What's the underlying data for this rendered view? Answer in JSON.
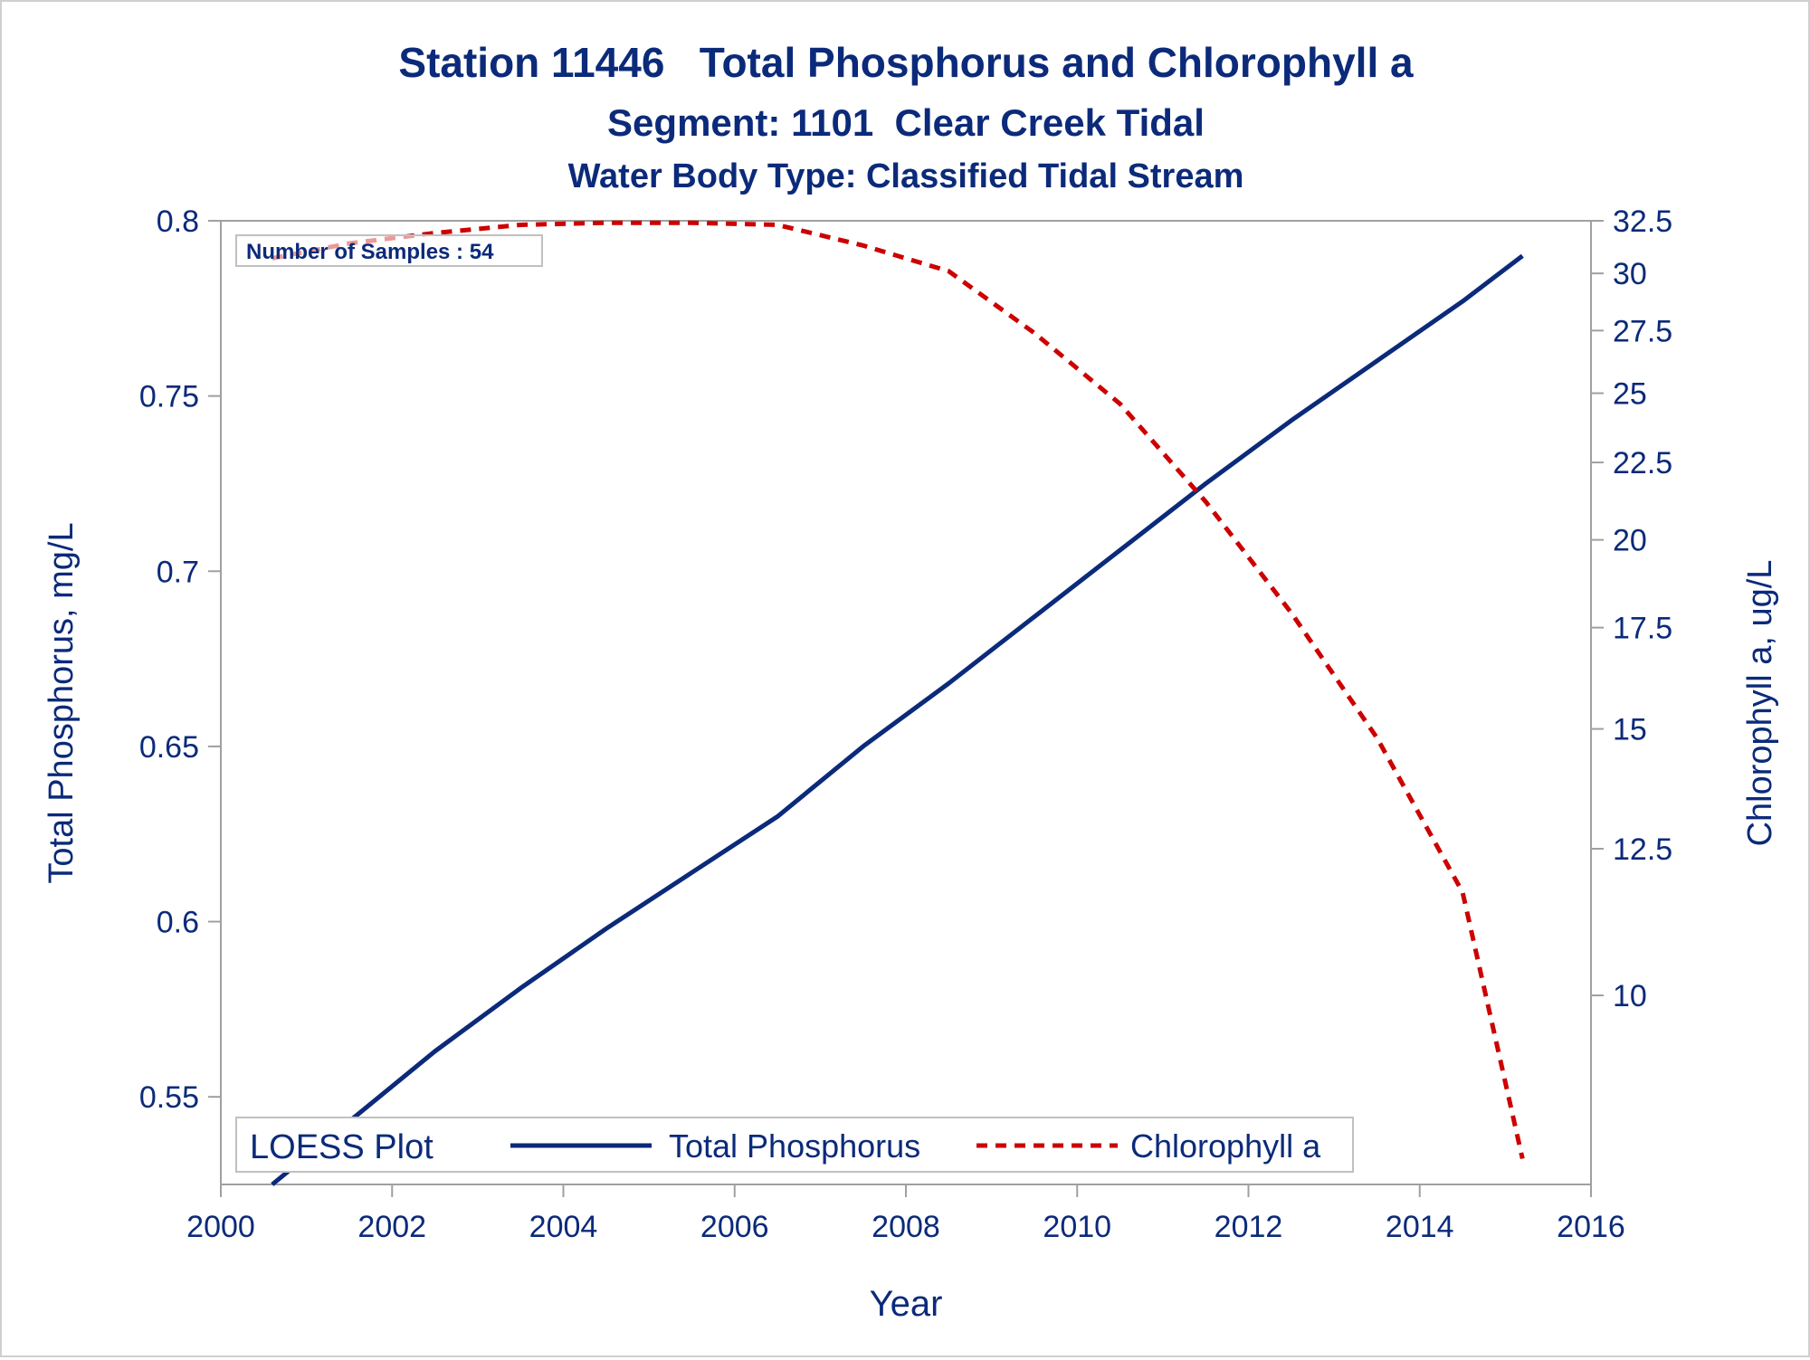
{
  "chart_data": {
    "type": "line",
    "title": "Station 11446   Total Phosphorus and Chlorophyll a",
    "subtitle": "Segment: 1101  Clear Creek Tidal",
    "subtitle2": "Water Body Type: Classified Tidal Stream",
    "xlabel": "Year",
    "ylabel": "Total Phosphorus, mg/L",
    "y2label": "Chlorophyll a, ug/L",
    "xlim": [
      2000,
      2016
    ],
    "ylim": [
      0.525,
      0.8
    ],
    "y2lim": [
      7.5,
      32.5
    ],
    "y2_scale": "log",
    "xticks": [
      2000,
      2002,
      2004,
      2006,
      2008,
      2010,
      2012,
      2014,
      2016
    ],
    "yticks": [
      0.55,
      0.6,
      0.65,
      0.7,
      0.75,
      0.8
    ],
    "y2ticks": [
      10,
      12.5,
      15,
      17.5,
      20,
      22.5,
      25,
      27.5,
      30,
      32.5
    ],
    "annotation": "Number of Samples : 54",
    "legend": {
      "title": "LOESS Plot",
      "placement": "bottom-inside"
    },
    "series": [
      {
        "name": "Total Phosphorus",
        "axis": "left",
        "color": "#0b2a7a",
        "style": "solid",
        "x": [
          2000.6,
          2001.5,
          2002.5,
          2003.5,
          2004.5,
          2005.5,
          2006.5,
          2007.5,
          2008.5,
          2009.5,
          2010.5,
          2011.5,
          2012.5,
          2013.5,
          2014.5,
          2015.2
        ],
        "y": [
          0.525,
          0.543,
          0.563,
          0.581,
          0.598,
          0.614,
          0.63,
          0.65,
          0.668,
          0.687,
          0.706,
          0.725,
          0.743,
          0.76,
          0.777,
          0.79
        ]
      },
      {
        "name": "Chlorophyll a",
        "axis": "right",
        "color": "#cc0000",
        "style": "dashed",
        "x": [
          2000.6,
          2001.5,
          2002.5,
          2003.5,
          2004.5,
          2005.5,
          2006.5,
          2007.5,
          2008.5,
          2009.5,
          2010.5,
          2011.5,
          2012.5,
          2013.5,
          2014.5,
          2015.2
        ],
        "y": [
          30.7,
          31.4,
          31.9,
          32.3,
          32.4,
          32.4,
          32.3,
          31.3,
          30.1,
          27.4,
          24.6,
          21.2,
          17.9,
          14.8,
          11.7,
          7.8
        ]
      }
    ]
  }
}
